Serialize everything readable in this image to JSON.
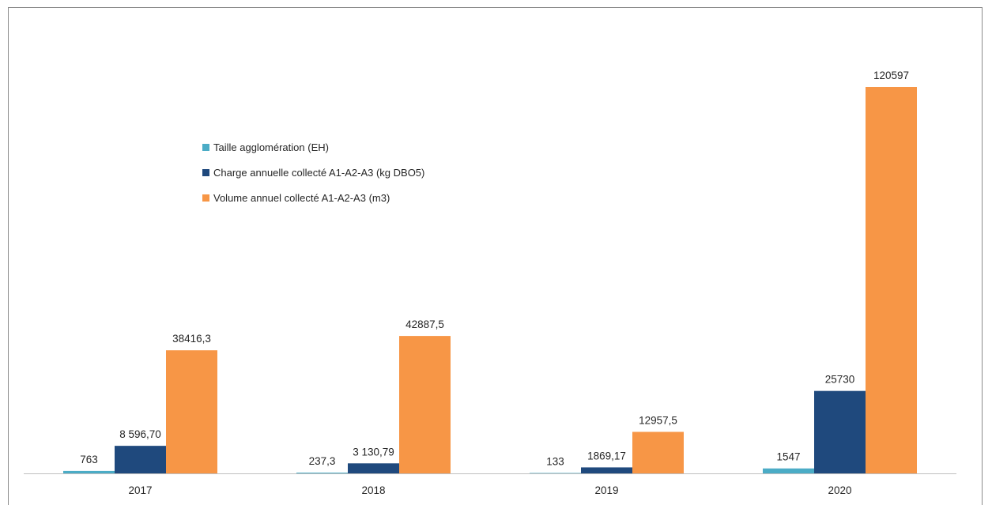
{
  "chart_data": {
    "type": "bar",
    "title": "",
    "xlabel": "",
    "ylabel": "",
    "categories": [
      "2017",
      "2018",
      "2019",
      "2020"
    ],
    "ylim": [
      0,
      120597
    ],
    "grid": false,
    "legend": "left-center",
    "series": [
      {
        "name": "Taille agglomération (EH)",
        "color": "#4bacc6",
        "values": [
          763,
          237.3,
          133,
          1547
        ],
        "labels": [
          "763",
          "237,3",
          "133",
          "1547"
        ]
      },
      {
        "name": "Charge annuelle collecté A1-A2-A3 (kg DBO5)",
        "color": "#1f497d",
        "values": [
          8596.7,
          3130.79,
          1869.17,
          25730
        ],
        "labels": [
          "8 596,70",
          "3 130,79",
          "1869,17",
          "25730"
        ]
      },
      {
        "name": "Volume annuel collecté A1-A2-A3 (m3)",
        "color": "#f79646",
        "values": [
          38416.3,
          42887.5,
          12957.5,
          120597
        ],
        "labels": [
          "38416,3",
          "42887,5",
          "12957,5",
          "120597"
        ]
      }
    ]
  }
}
